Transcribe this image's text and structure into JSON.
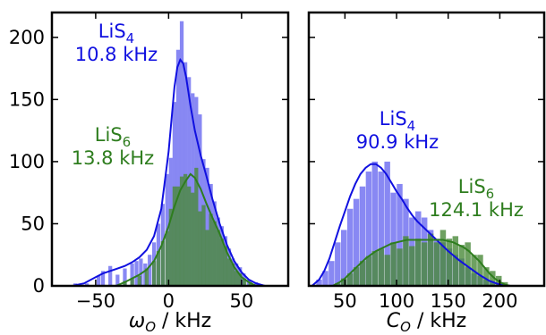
{
  "chart_data": [
    {
      "type": "histogram",
      "xlabel": "ω_O / kHz",
      "xlabel_main": "ω",
      "xlabel_sub": "O",
      "xlabel_unit": " / kHz",
      "ylabel": "",
      "xlim": [
        -80,
        82
      ],
      "ylim": [
        0,
        220
      ],
      "xticks": [
        -50,
        0,
        50
      ],
      "xtick_labels": [
        "−50",
        "0",
        "50"
      ],
      "yticks": [
        0,
        50,
        100,
        150,
        200
      ],
      "ytick_labels": [
        "0",
        "50",
        "100",
        "150",
        "200"
      ],
      "bin_width": 2.6,
      "annotations": [
        {
          "text": "LiS",
          "sub": "4",
          "value": "10.8 kHz",
          "color": "#1010e0"
        },
        {
          "text": "LiS",
          "sub": "6",
          "value": "13.8 kHz",
          "color": "#2e7d1e"
        }
      ],
      "series": [
        {
          "label": "LiS4",
          "color": "#1010e0",
          "fill": "#7b7bf2",
          "bins": [
            [
              -64,
              2
            ],
            [
              -56,
              2
            ],
            [
              -48,
              8
            ],
            [
              -45,
              12
            ],
            [
              -40,
              16
            ],
            [
              -35,
              9
            ],
            [
              -30,
              14
            ],
            [
              -25,
              18
            ],
            [
              -22,
              20
            ],
            [
              -19,
              22
            ],
            [
              -16,
              18
            ],
            [
              -13,
              25
            ],
            [
              -10,
              35
            ],
            [
              -7,
              50
            ],
            [
              -4,
              66
            ],
            [
              -1,
              90
            ],
            [
              1.5,
              103
            ],
            [
              4,
              148
            ],
            [
              6.5,
              190
            ],
            [
              9,
              213
            ],
            [
              11.5,
              180
            ],
            [
              14,
              168
            ],
            [
              16.5,
              155
            ],
            [
              19,
              152
            ],
            [
              21.5,
              138
            ],
            [
              24,
              102
            ],
            [
              26.5,
              95
            ],
            [
              29,
              82
            ],
            [
              31.5,
              68
            ],
            [
              34,
              55
            ],
            [
              36.5,
              48
            ],
            [
              39,
              40
            ],
            [
              41.5,
              30
            ],
            [
              44,
              22
            ],
            [
              46.5,
              18
            ],
            [
              49,
              15
            ],
            [
              51.5,
              10
            ],
            [
              55,
              5
            ],
            [
              60,
              3
            ]
          ],
          "kde": [
            [
              -66,
              0
            ],
            [
              -58,
              2
            ],
            [
              -50,
              7
            ],
            [
              -45,
              10
            ],
            [
              -40,
              12
            ],
            [
              -35,
              14
            ],
            [
              -30,
              16
            ],
            [
              -25,
              19
            ],
            [
              -20,
              23
            ],
            [
              -15,
              29
            ],
            [
              -10,
              40
            ],
            [
              -5,
              62
            ],
            [
              0,
              108
            ],
            [
              4,
              160
            ],
            [
              6,
              176
            ],
            [
              8,
              182
            ],
            [
              10,
              179
            ],
            [
              12,
              168
            ],
            [
              15,
              145
            ],
            [
              18,
              125
            ],
            [
              22,
              105
            ],
            [
              26,
              88
            ],
            [
              30,
              70
            ],
            [
              35,
              50
            ],
            [
              40,
              33
            ],
            [
              45,
              20
            ],
            [
              50,
              11
            ],
            [
              55,
              5
            ],
            [
              60,
              2
            ],
            [
              66,
              0
            ]
          ]
        },
        {
          "label": "LiS6",
          "color": "#2e7d1e",
          "fill": "#4a8a3a",
          "bins": [
            [
              -30,
              4
            ],
            [
              -25,
              6
            ],
            [
              -20,
              8
            ],
            [
              -15,
              14
            ],
            [
              -10,
              20
            ],
            [
              -7,
              28
            ],
            [
              -4,
              36
            ],
            [
              -1,
              44
            ],
            [
              1.5,
              62
            ],
            [
              4,
              80
            ],
            [
              6.5,
              80
            ],
            [
              9,
              88
            ],
            [
              11.5,
              90
            ],
            [
              14,
              80
            ],
            [
              16.5,
              75
            ],
            [
              19,
              95
            ],
            [
              21.5,
              60
            ],
            [
              24,
              65
            ],
            [
              26.5,
              45
            ],
            [
              29,
              58
            ],
            [
              31.5,
              52
            ],
            [
              34,
              45
            ],
            [
              36.5,
              38
            ],
            [
              39,
              32
            ],
            [
              41.5,
              22
            ],
            [
              44,
              18
            ],
            [
              46.5,
              12
            ],
            [
              49,
              10
            ],
            [
              52,
              6
            ],
            [
              56,
              3
            ]
          ],
          "kde": [
            [
              -36,
              0
            ],
            [
              -30,
              3
            ],
            [
              -25,
              6
            ],
            [
              -20,
              9
            ],
            [
              -15,
              13
            ],
            [
              -10,
              20
            ],
            [
              -5,
              32
            ],
            [
              0,
              48
            ],
            [
              4,
              64
            ],
            [
              8,
              77
            ],
            [
              12,
              85
            ],
            [
              15,
              90
            ],
            [
              18,
              87
            ],
            [
              22,
              78
            ],
            [
              26,
              66
            ],
            [
              30,
              55
            ],
            [
              35,
              42
            ],
            [
              40,
              27
            ],
            [
              45,
              15
            ],
            [
              50,
              7
            ],
            [
              55,
              3
            ],
            [
              60,
              0
            ]
          ]
        }
      ]
    },
    {
      "type": "histogram",
      "xlabel": "C_O / kHz",
      "xlabel_main": "C",
      "xlabel_sub": "O",
      "xlabel_unit": " / kHz",
      "ylabel": "",
      "xlim": [
        15,
        243
      ],
      "ylim": [
        0,
        220
      ],
      "xticks": [
        50,
        100,
        150,
        200
      ],
      "xtick_labels": [
        "50",
        "100",
        "150",
        "200"
      ],
      "yticks": [
        0,
        50,
        100,
        150,
        200
      ],
      "ytick_labels": [],
      "bin_width": 5.6,
      "annotations": [
        {
          "text": "LiS",
          "sub": "4",
          "value": "90.9 kHz",
          "color": "#1010e0"
        },
        {
          "text": "LiS",
          "sub": "6",
          "value": "124.1 kHz",
          "color": "#2e7d1e"
        }
      ],
      "series": [
        {
          "label": "LiS4",
          "color": "#1010e0",
          "fill": "#7b7bf2",
          "bins": [
            [
              25,
              5
            ],
            [
              31,
              12
            ],
            [
              37,
              20
            ],
            [
              43,
              35
            ],
            [
              49,
              45
            ],
            [
              55,
              62
            ],
            [
              61,
              70
            ],
            [
              67,
              80
            ],
            [
              73,
              92
            ],
            [
              79,
              100
            ],
            [
              85,
              92
            ],
            [
              91,
              100
            ],
            [
              97,
              75
            ],
            [
              103,
              82
            ],
            [
              109,
              70
            ],
            [
              115,
              55
            ],
            [
              121,
              60
            ],
            [
              127,
              55
            ],
            [
              133,
              45
            ],
            [
              139,
              38
            ],
            [
              145,
              35
            ],
            [
              151,
              30
            ],
            [
              157,
              25
            ],
            [
              163,
              22
            ],
            [
              169,
              15
            ],
            [
              175,
              10
            ],
            [
              181,
              8
            ],
            [
              187,
              5
            ],
            [
              193,
              3
            ]
          ],
          "kde": [
            [
              18,
              0
            ],
            [
              25,
              5
            ],
            [
              30,
              12
            ],
            [
              35,
              22
            ],
            [
              40,
              35
            ],
            [
              45,
              48
            ],
            [
              50,
              60
            ],
            [
              55,
              72
            ],
            [
              60,
              82
            ],
            [
              65,
              90
            ],
            [
              70,
              95
            ],
            [
              75,
              98
            ],
            [
              80,
              98
            ],
            [
              85,
              95
            ],
            [
              90,
              90
            ],
            [
              95,
              83
            ],
            [
              100,
              76
            ],
            [
              105,
              70
            ],
            [
              110,
              63
            ],
            [
              115,
              57
            ],
            [
              120,
              52
            ],
            [
              125,
              48
            ],
            [
              130,
              44
            ],
            [
              135,
              40
            ],
            [
              140,
              36
            ],
            [
              145,
              32
            ],
            [
              150,
              28
            ],
            [
              160,
              21
            ],
            [
              170,
              15
            ],
            [
              180,
              9
            ],
            [
              190,
              4
            ],
            [
              200,
              1
            ],
            [
              210,
              0
            ]
          ]
        },
        {
          "label": "LiS6",
          "color": "#2e7d1e",
          "fill": "#4a8a3a",
          "bins": [
            [
              43,
              2
            ],
            [
              49,
              6
            ],
            [
              55,
              10
            ],
            [
              61,
              15
            ],
            [
              67,
              20
            ],
            [
              73,
              24
            ],
            [
              79,
              28
            ],
            [
              85,
              30
            ],
            [
              91,
              25
            ],
            [
              97,
              35
            ],
            [
              103,
              30
            ],
            [
              109,
              40
            ],
            [
              115,
              32
            ],
            [
              121,
              38
            ],
            [
              127,
              35
            ],
            [
              133,
              42
            ],
            [
              139,
              35
            ],
            [
              145,
              45
            ],
            [
              151,
              38
            ],
            [
              157,
              40
            ],
            [
              163,
              33
            ],
            [
              169,
              35
            ],
            [
              175,
              25
            ],
            [
              181,
              25
            ],
            [
              187,
              15
            ],
            [
              193,
              12
            ],
            [
              199,
              8
            ],
            [
              205,
              3
            ]
          ],
          "kde": [
            [
              38,
              0
            ],
            [
              45,
              3
            ],
            [
              50,
              6
            ],
            [
              55,
              10
            ],
            [
              60,
              14
            ],
            [
              65,
              18
            ],
            [
              70,
              22
            ],
            [
              75,
              25
            ],
            [
              80,
              28
            ],
            [
              85,
              30
            ],
            [
              90,
              32
            ],
            [
              95,
              34
            ],
            [
              100,
              35
            ],
            [
              105,
              36
            ],
            [
              110,
              37
            ],
            [
              115,
              37
            ],
            [
              120,
              37
            ],
            [
              125,
              37
            ],
            [
              130,
              37
            ],
            [
              135,
              37
            ],
            [
              140,
              37
            ],
            [
              145,
              37
            ],
            [
              150,
              36
            ],
            [
              155,
              35
            ],
            [
              160,
              33
            ],
            [
              165,
              31
            ],
            [
              170,
              28
            ],
            [
              175,
              24
            ],
            [
              180,
              20
            ],
            [
              185,
              15
            ],
            [
              190,
              10
            ],
            [
              195,
              6
            ],
            [
              200,
              3
            ],
            [
              205,
              1
            ],
            [
              210,
              0
            ]
          ]
        }
      ]
    }
  ]
}
